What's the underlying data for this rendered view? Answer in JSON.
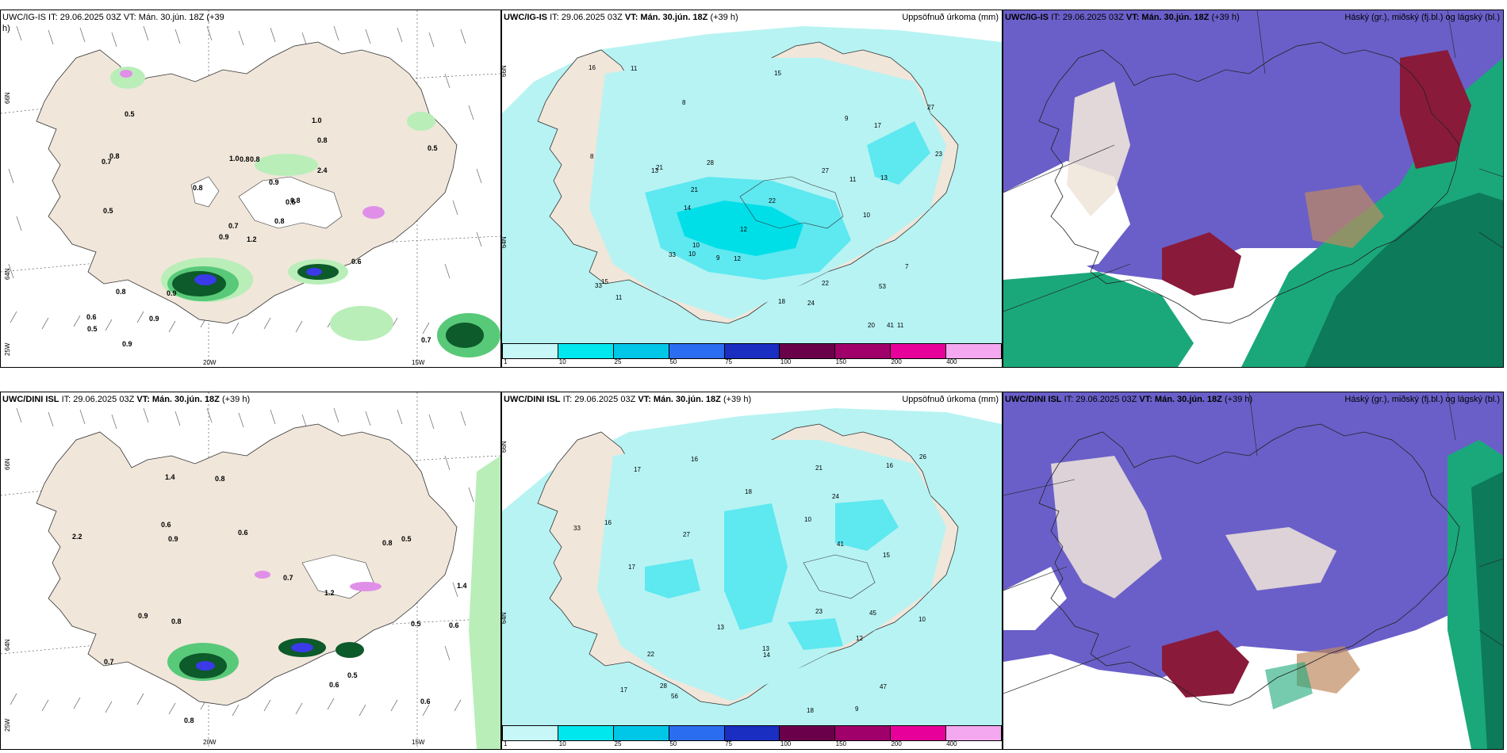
{
  "rows": [
    {
      "model": "UWC/IG-IS",
      "it_label": "IT: 29.06.2025 03Z",
      "vt_label": "VT: Mán. 30.jún. 18Z",
      "lead": "(+39 h)",
      "precip_values": [
        "1.2",
        "0.7",
        "0.7",
        "0.6",
        "0.5",
        "0.9",
        "1.0",
        "0.8",
        "0.8",
        "0.8",
        "0.5",
        "0.7",
        "0.5",
        "0.5",
        "0.9",
        "2.4",
        "0.9",
        "1.0",
        "0.9",
        "0.8",
        "0.8",
        "0.5",
        "0.9",
        "0.8",
        "0.8",
        "0.6",
        "0.8"
      ],
      "accum_values": [
        "12",
        "13",
        "11",
        "10",
        "11",
        "8",
        "12",
        "14",
        "10",
        "11",
        "13",
        "15",
        "16",
        "20",
        "21",
        "22",
        "22",
        "23",
        "27",
        "28",
        "41",
        "21",
        "24",
        "33",
        "53",
        "27",
        "18",
        "15",
        "17",
        "33",
        "10",
        "9",
        "11",
        "7",
        "9",
        "8"
      ]
    },
    {
      "model": "UWC/DINI ISL",
      "it_label": "IT: 29.06.2025 03Z",
      "vt_label": "VT: Mán. 30.jún. 18Z",
      "lead": "(+39 h)",
      "precip_values": [
        "0.6",
        "0.6",
        "0.8",
        "0.6",
        "0.6",
        "0.8",
        "0.7",
        "0.6",
        "1.4",
        "1.2",
        "2.2",
        "1.4",
        "0.7",
        "0.5",
        "0.8",
        "0.9",
        "0.5",
        "0.5",
        "0.9",
        "0.8"
      ],
      "accum_values": [
        "10",
        "9",
        "14",
        "17",
        "13",
        "27",
        "16",
        "24",
        "18",
        "15",
        "23",
        "16",
        "33",
        "41",
        "56",
        "17",
        "22",
        "28",
        "21",
        "18",
        "16",
        "45",
        "47",
        "17",
        "26",
        "10",
        "12",
        "13"
      ]
    }
  ],
  "labels": {
    "precip_title": "Uppsöfnuð úrkoma (mm)",
    "cloud_title": "Háský (gr.), miðský (fj.bl.) og lágský (bl.)",
    "lat_66": "66N",
    "lat_64": "64N",
    "lon_25": "25W",
    "lon_20": "20W",
    "lon_15": "15W",
    "top_first_title_cut": "UWC/IG-IS IT: 29.06.2025 03Z VT: Mán. 30.jún. 18Z (+39",
    "top_first_title_cut2": "h)"
  },
  "colorbar": {
    "ticks": [
      "1",
      "10",
      "25",
      "50",
      "75",
      "100",
      "150",
      "200",
      "400"
    ],
    "colors": [
      "#c7f7f7",
      "#00e7ee",
      "#00c6e8",
      "#2a6df0",
      "#1a2ec2",
      "#6a004a",
      "#a0006a",
      "#e8009a",
      "#f4a8f0"
    ]
  },
  "colors": {
    "land": "#f0e6da",
    "sea_accum": "#b7f3f3",
    "accum_mid": "#5ee8f0",
    "accum_hi": "#00dfe8",
    "precip_light": "#b9eeb9",
    "precip_mid": "#58c978",
    "precip_dark": "#0d5a2a",
    "precip_blue": "#3a3ae8",
    "high_cloud": "#6a5fc8",
    "mid_cloud": "#1aa87a",
    "low_cloud": "#8a1a3a"
  }
}
